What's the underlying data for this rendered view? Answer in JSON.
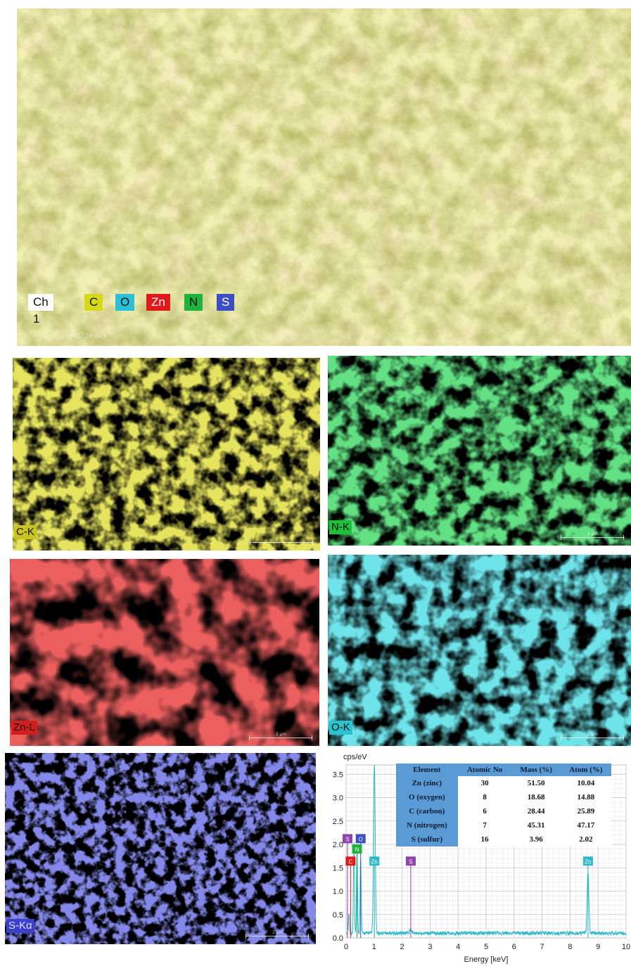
{
  "composite_legend": {
    "items": [
      {
        "label": "Ch 1",
        "bg": "#ffffff",
        "fg": "#111111"
      },
      {
        "label": "C",
        "bg": "#d8d81a",
        "fg": "#111111"
      },
      {
        "label": "O",
        "bg": "#2cc0d6",
        "fg": "#111111"
      },
      {
        "label": "Zn",
        "bg": "#e0191c",
        "fg": "#ffffff"
      },
      {
        "label": "N",
        "bg": "#1fb33d",
        "fg": "#111111"
      },
      {
        "label": "S",
        "bg": "#3b4fc2",
        "fg": "#ffffff"
      }
    ],
    "meta": "MAG: 20.0kx"
  },
  "element_maps": [
    {
      "id": "c",
      "label": "C-K",
      "color": "#c9c51d",
      "scalebar_text": "",
      "meta": ""
    },
    {
      "id": "n",
      "label": "N-K",
      "color": "#1fbf3a",
      "scalebar_text": "2 μm",
      "meta": ""
    },
    {
      "id": "zn",
      "label": "Zn-L",
      "color": "#d41d1d",
      "scalebar_text": "2 μm",
      "meta": ""
    },
    {
      "id": "o",
      "label": "O-K",
      "color": "#28c4cf",
      "scalebar_text": "2 μm",
      "meta": ""
    },
    {
      "id": "s",
      "label": "S-Kα",
      "color": "#3a3fd0",
      "scalebar_text": "2 μm",
      "meta": ""
    }
  ],
  "eds_table": {
    "headers": [
      "Element",
      "Atomic No",
      "Mass (%)",
      "Atom (%)"
    ],
    "rows": [
      [
        "Zn (zinc)",
        "30",
        "51.50",
        "10.04"
      ],
      [
        "O (oxygen)",
        "8",
        "18.68",
        "14.88"
      ],
      [
        "C (carbon)",
        "6",
        "28.44",
        "25.89"
      ],
      [
        "N (nitrogen)",
        "7",
        "45.31",
        "47.17"
      ],
      [
        "S (sulfur)",
        "16",
        "3.96",
        "2.02"
      ]
    ]
  },
  "chart_data": {
    "type": "line",
    "xlabel": "Energy [keV]",
    "ylabel": "cps/eV",
    "xlim": [
      0,
      10
    ],
    "ylim": [
      0,
      3.7
    ],
    "xticks": [
      0,
      1,
      2,
      3,
      4,
      5,
      6,
      7,
      8,
      9,
      10
    ],
    "yticks": [
      0.0,
      0.5,
      1.0,
      1.5,
      2.0,
      2.5,
      3.0,
      3.5
    ],
    "grid": true,
    "line_color": "#29b8c9",
    "peaks": [
      {
        "x": 0.1,
        "y": 0.4
      },
      {
        "x": 0.28,
        "y": 1.9
      },
      {
        "x": 0.39,
        "y": 1.8
      },
      {
        "x": 0.52,
        "y": 1.6
      },
      {
        "x": 1.01,
        "y": 3.65
      },
      {
        "x": 2.31,
        "y": 0.1
      },
      {
        "x": 8.64,
        "y": 1.3
      }
    ],
    "background_level": 0.1,
    "peak_labels": [
      {
        "text": "S",
        "x": 0.05,
        "y": 2.13,
        "color": "#8e44ad"
      },
      {
        "text": "O",
        "x": 0.52,
        "y": 2.13,
        "color": "#3b4fc2"
      },
      {
        "text": "N",
        "x": 0.39,
        "y": 1.91,
        "color": "#1fb33d"
      },
      {
        "text": "C",
        "x": 0.16,
        "y": 1.65,
        "color": "#e0191c"
      },
      {
        "text": "Zn",
        "x": 1.01,
        "y": 1.65,
        "color": "#2cb8c9"
      },
      {
        "text": "S",
        "x": 2.31,
        "y": 1.65,
        "color": "#8e44ad"
      },
      {
        "text": "Zn",
        "x": 8.64,
        "y": 1.65,
        "color": "#2cb8c9"
      }
    ]
  }
}
